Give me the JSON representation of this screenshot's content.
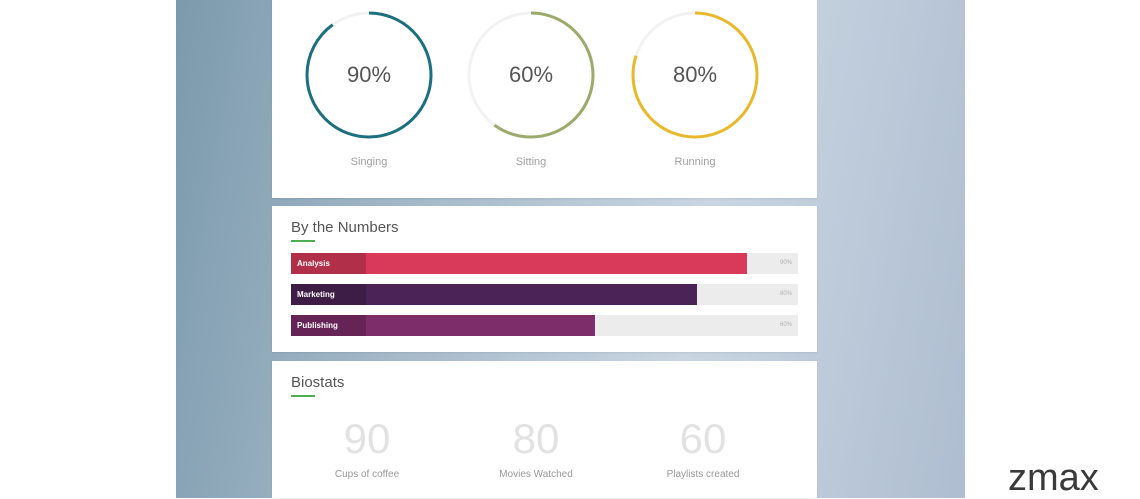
{
  "rings": [
    {
      "value": "90%",
      "label": "Singing",
      "percent": 90,
      "color": "#1c6f7e"
    },
    {
      "value": "60%",
      "label": "Sitting",
      "percent": 60,
      "color": "#9aab6b"
    },
    {
      "value": "80%",
      "label": "Running",
      "percent": 80,
      "color": "#e9b92b"
    }
  ],
  "numbers": {
    "title": "By the Numbers",
    "accent": "#4caf50",
    "bars": [
      {
        "label": "Analysis",
        "percent_label": "90%",
        "percent": 90,
        "color": "#d93a5a"
      },
      {
        "label": "Marketing",
        "percent_label": "80%",
        "percent": 80,
        "color": "#4b2356"
      },
      {
        "label": "Publishing",
        "percent_label": "60%",
        "percent": 60,
        "color": "#7d2d6a"
      }
    ]
  },
  "biostats": {
    "title": "Biostats",
    "stats": [
      {
        "value": "90",
        "label": "Cups of coffee"
      },
      {
        "value": "80",
        "label": "Movies Watched"
      },
      {
        "value": "60",
        "label": "Playlists created"
      }
    ]
  },
  "watermark": "zmax"
}
